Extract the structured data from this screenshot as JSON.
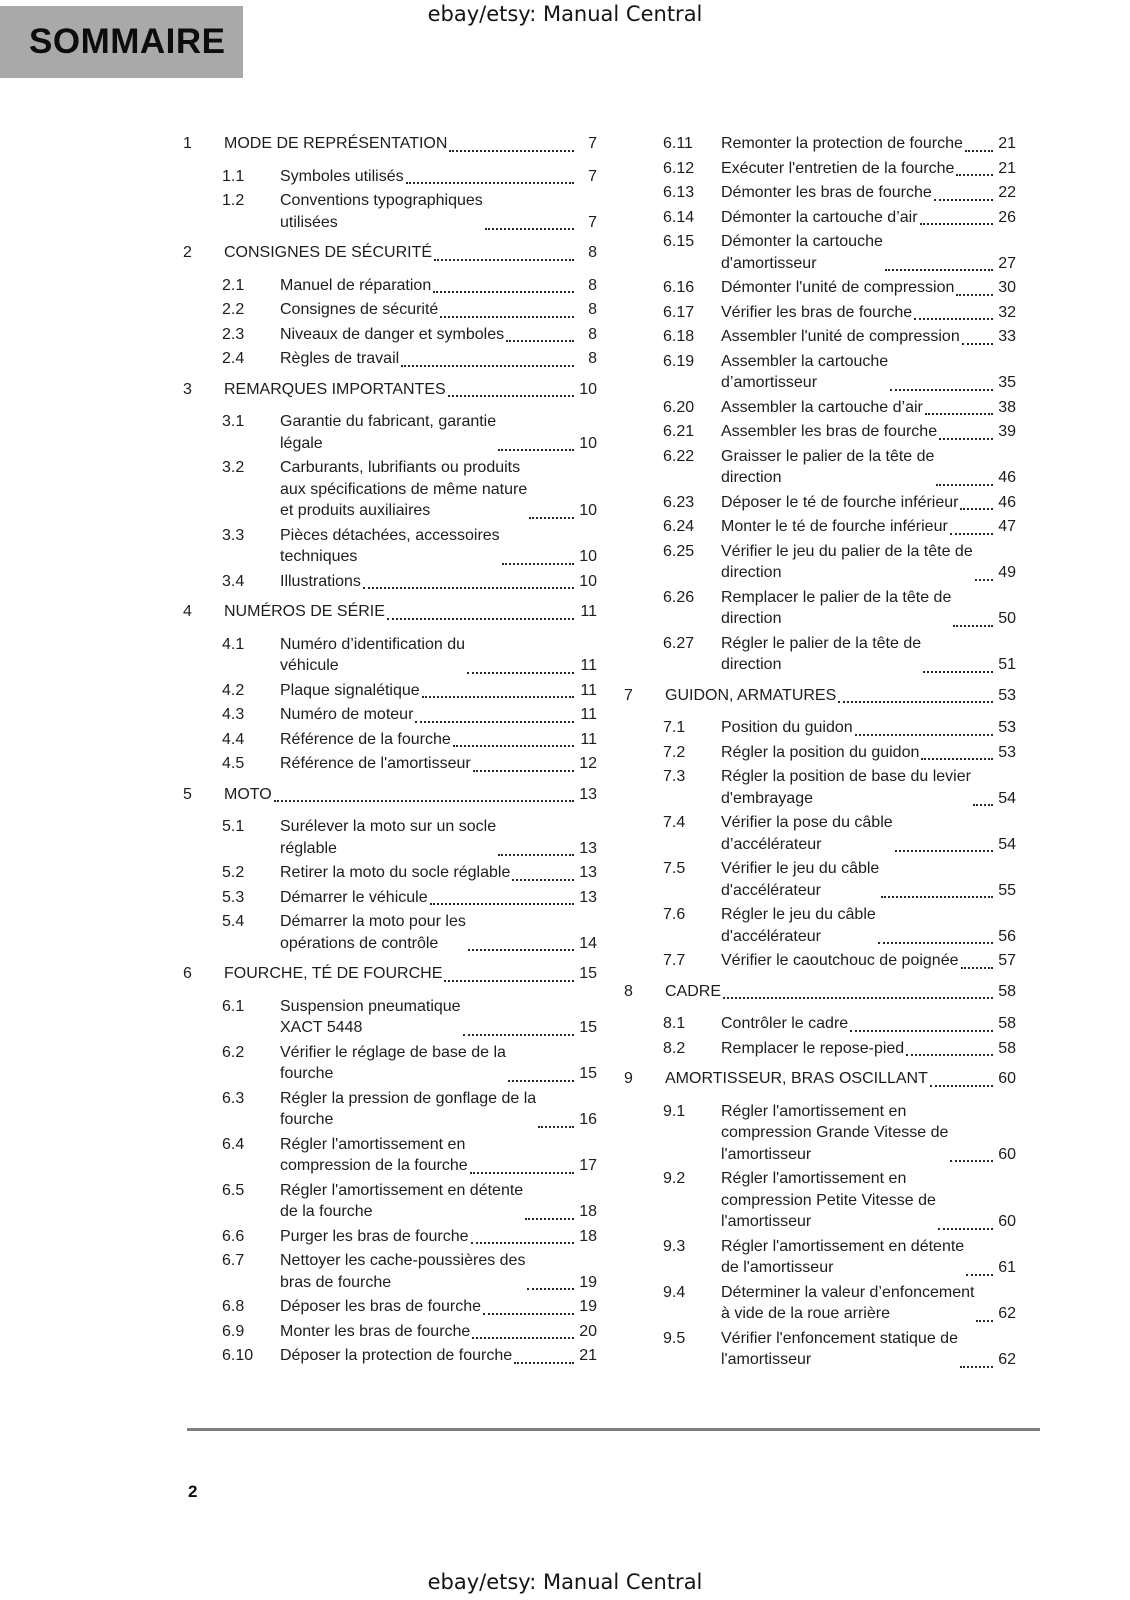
{
  "header": {
    "title": "ebay/etsy: Manual Central"
  },
  "banner": {
    "label": "SOMMAIRE"
  },
  "footer": {
    "page_number": "2",
    "title": "ebay/etsy: Manual Central"
  },
  "colors": {
    "banner_bg": "#a9a9a9",
    "divider": "#7e7e7e",
    "text": "#1d1d1d"
  },
  "toc": {
    "columns": [
      {
        "entries": [
          {
            "level": "chapter",
            "number": "1",
            "title": "MODE DE REPRÉSENTATION",
            "page": "7"
          },
          {
            "level": "section",
            "number": "1.1",
            "title": "Symboles utilisés",
            "page": "7"
          },
          {
            "level": "section",
            "number": "1.2",
            "title": "Conventions typographiques\nutilisées",
            "page": "7"
          },
          {
            "level": "chapter",
            "number": "2",
            "title": "CONSIGNES DE SÉCURITÉ",
            "page": "8"
          },
          {
            "level": "section",
            "number": "2.1",
            "title": "Manuel de réparation",
            "page": "8"
          },
          {
            "level": "section",
            "number": "2.2",
            "title": "Consignes de sécurité",
            "page": "8"
          },
          {
            "level": "section",
            "number": "2.3",
            "title": "Niveaux de danger et symboles",
            "page": "8"
          },
          {
            "level": "section",
            "number": "2.4",
            "title": "Règles de travail",
            "page": "8"
          },
          {
            "level": "chapter",
            "number": "3",
            "title": "REMARQUES IMPORTANTES",
            "page": "10"
          },
          {
            "level": "section",
            "number": "3.1",
            "title": "Garantie du fabricant, garantie\nlégale",
            "page": "10"
          },
          {
            "level": "section",
            "number": "3.2",
            "title": "Carburants, lubrifiants ou produits\naux spécifications de même nature\net produits auxiliaires",
            "page": "10"
          },
          {
            "level": "section",
            "number": "3.3",
            "title": "Pièces détachées, accessoires\ntechniques",
            "page": "10"
          },
          {
            "level": "section",
            "number": "3.4",
            "title": "Illustrations",
            "page": "10"
          },
          {
            "level": "chapter",
            "number": "4",
            "title": "NUMÉROS DE SÉRIE",
            "page": "11"
          },
          {
            "level": "section",
            "number": "4.1",
            "title": "Numéro d’identification du\nvéhicule",
            "page": "11"
          },
          {
            "level": "section",
            "number": "4.2",
            "title": "Plaque signalétique",
            "page": "11"
          },
          {
            "level": "section",
            "number": "4.3",
            "title": "Numéro de moteur",
            "page": "11"
          },
          {
            "level": "section",
            "number": "4.4",
            "title": "Référence de la fourche",
            "page": "11"
          },
          {
            "level": "section",
            "number": "4.5",
            "title": "Référence de l'amortisseur",
            "page": "12"
          },
          {
            "level": "chapter",
            "number": "5",
            "title": "MOTO",
            "page": "13"
          },
          {
            "level": "section",
            "number": "5.1",
            "title": "Surélever la moto sur un socle\nréglable",
            "page": "13"
          },
          {
            "level": "section",
            "number": "5.2",
            "title": "Retirer la moto du socle réglable",
            "page": "13"
          },
          {
            "level": "section",
            "number": "5.3",
            "title": "Démarrer le véhicule",
            "page": "13"
          },
          {
            "level": "section",
            "number": "5.4",
            "title": "Démarrer la moto pour les\nopérations de contrôle",
            "page": "14"
          },
          {
            "level": "chapter",
            "number": "6",
            "title": "FOURCHE, TÉ DE FOURCHE",
            "page": "15"
          },
          {
            "level": "section",
            "number": "6.1",
            "title": "Suspension pneumatique\nXACT 5448",
            "page": "15"
          },
          {
            "level": "section",
            "number": "6.2",
            "title": "Vérifier le réglage de base de la\nfourche",
            "page": "15"
          },
          {
            "level": "section",
            "number": "6.3",
            "title": "Régler la pression de gonflage de la\nfourche",
            "page": "16"
          },
          {
            "level": "section",
            "number": "6.4",
            "title": "Régler l'amortissement en\ncompression de la fourche",
            "page": "17"
          },
          {
            "level": "section",
            "number": "6.5",
            "title": "Régler l'amortissement en détente\nde la fourche",
            "page": "18"
          },
          {
            "level": "section",
            "number": "6.6",
            "title": "Purger les bras de fourche",
            "page": "18"
          },
          {
            "level": "section",
            "number": "6.7",
            "title": "Nettoyer les cache-poussières des\nbras de fourche",
            "page": "19"
          },
          {
            "level": "section",
            "number": "6.8",
            "title": "Déposer les bras de fourche",
            "page": "19"
          },
          {
            "level": "section",
            "number": "6.9",
            "title": "Monter les bras de fourche",
            "page": "20"
          },
          {
            "level": "section",
            "number": "6.10",
            "title": "Déposer la protection de fourche",
            "page": "21"
          }
        ]
      },
      {
        "entries": [
          {
            "level": "section",
            "number": "6.11",
            "title": "Remonter la protection de fourche",
            "page": "21"
          },
          {
            "level": "section",
            "number": "6.12",
            "title": "Exécuter l'entretien de la fourche",
            "page": "21"
          },
          {
            "level": "section",
            "number": "6.13",
            "title": "Démonter les bras de fourche",
            "page": "22"
          },
          {
            "level": "section",
            "number": "6.14",
            "title": "Démonter la cartouche d’air",
            "page": "26"
          },
          {
            "level": "section",
            "number": "6.15",
            "title": "Démonter la cartouche\nd'amortisseur",
            "page": "27"
          },
          {
            "level": "section",
            "number": "6.16",
            "title": "Démonter l'unité de compression",
            "page": "30"
          },
          {
            "level": "section",
            "number": "6.17",
            "title": "Vérifier les bras de fourche",
            "page": "32"
          },
          {
            "level": "section",
            "number": "6.18",
            "title": "Assembler l'unité de compression",
            "page": "33"
          },
          {
            "level": "section",
            "number": "6.19",
            "title": "Assembler la cartouche\nd’amortisseur",
            "page": "35"
          },
          {
            "level": "section",
            "number": "6.20",
            "title": "Assembler la cartouche d’air",
            "page": "38"
          },
          {
            "level": "section",
            "number": "6.21",
            "title": "Assembler les bras de fourche",
            "page": "39"
          },
          {
            "level": "section",
            "number": "6.22",
            "title": "Graisser le palier de la tête de\ndirection",
            "page": "46"
          },
          {
            "level": "section",
            "number": "6.23",
            "title": "Déposer le té de fourche inférieur",
            "page": "46"
          },
          {
            "level": "section",
            "number": "6.24",
            "title": "Monter le té de fourche inférieur",
            "page": "47"
          },
          {
            "level": "section",
            "number": "6.25",
            "title": "Vérifier le jeu du palier de la tête de\ndirection",
            "page": "49"
          },
          {
            "level": "section",
            "number": "6.26",
            "title": "Remplacer le palier de la tête de\ndirection",
            "page": "50"
          },
          {
            "level": "section",
            "number": "6.27",
            "title": "Régler le palier de la tête de\ndirection",
            "page": "51"
          },
          {
            "level": "chapter",
            "number": "7",
            "title": "GUIDON, ARMATURES",
            "page": "53"
          },
          {
            "level": "section",
            "number": "7.1",
            "title": "Position du guidon",
            "page": "53"
          },
          {
            "level": "section",
            "number": "7.2",
            "title": "Régler la position du guidon",
            "page": "53"
          },
          {
            "level": "section",
            "number": "7.3",
            "title": "Régler la position de base du levier\nd'embrayage",
            "page": "54"
          },
          {
            "level": "section",
            "number": "7.4",
            "title": "Vérifier la pose du câble\nd’accélérateur",
            "page": "54"
          },
          {
            "level": "section",
            "number": "7.5",
            "title": "Vérifier le jeu du câble\nd'accélérateur",
            "page": "55"
          },
          {
            "level": "section",
            "number": "7.6",
            "title": "Régler le jeu du câble\nd'accélérateur",
            "page": "56"
          },
          {
            "level": "section",
            "number": "7.7",
            "title": "Vérifier le caoutchouc de poignée",
            "page": "57"
          },
          {
            "level": "chapter",
            "number": "8",
            "title": "CADRE",
            "page": "58"
          },
          {
            "level": "section",
            "number": "8.1",
            "title": "Contrôler le cadre",
            "page": "58"
          },
          {
            "level": "section",
            "number": "8.2",
            "title": "Remplacer le repose-pied",
            "page": "58"
          },
          {
            "level": "chapter",
            "number": "9",
            "title": "AMORTISSEUR, BRAS OSCILLANT",
            "page": "60"
          },
          {
            "level": "section",
            "number": "9.1",
            "title": "Régler l'amortissement en\ncompression Grande Vitesse de\nl'amortisseur",
            "page": "60"
          },
          {
            "level": "section",
            "number": "9.2",
            "title": "Régler l'amortissement en\ncompression Petite Vitesse de\nl'amortisseur",
            "page": "60"
          },
          {
            "level": "section",
            "number": "9.3",
            "title": "Régler l'amortissement en détente\nde l'amortisseur",
            "page": "61"
          },
          {
            "level": "section",
            "number": "9.4",
            "title": "Déterminer la valeur d’enfoncement\nà vide de la roue arrière",
            "page": "62"
          },
          {
            "level": "section",
            "number": "9.5",
            "title": "Vérifier l'enfoncement statique de\nl'amortisseur",
            "page": "62"
          }
        ]
      }
    ]
  }
}
